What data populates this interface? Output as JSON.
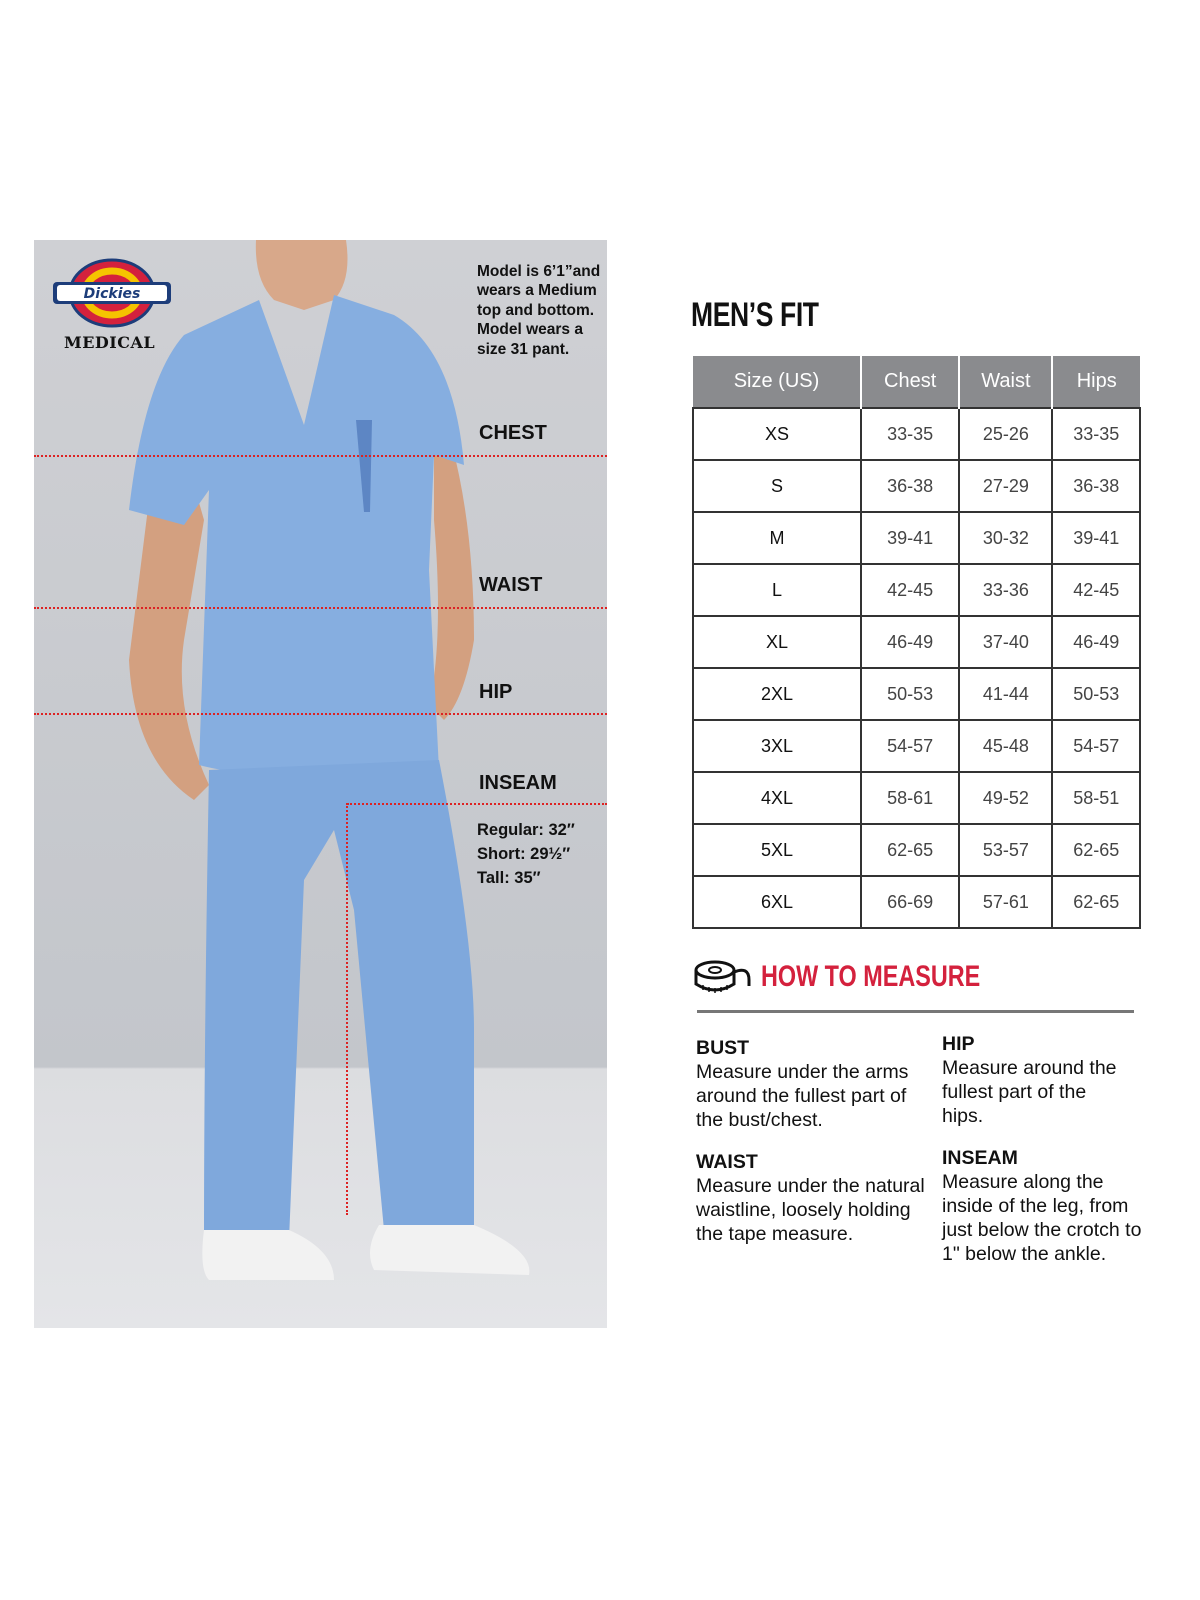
{
  "brand": {
    "logo_text": "Dickies",
    "sub_label": "MEDICAL"
  },
  "model_note": "Model is 6’1”and wears a Medium top and bottom. Model wears a size 31 pant.",
  "measure_labels": {
    "chest": "CHEST",
    "waist": "WAIST",
    "hip": "HIP",
    "inseam": "INSEAM"
  },
  "inseam_lengths": [
    "Regular: 32″",
    "Short: 29½″",
    "Tall: 35″"
  ],
  "colors": {
    "accent_red": "#d4213d",
    "header_gray": "#8a8b8e",
    "scrubs_blue": "#86aee0"
  },
  "size_chart": {
    "title": "MEN’S FIT",
    "headers": [
      "Size (US)",
      "Chest",
      "Waist",
      "Hips"
    ],
    "rows": [
      [
        "XS",
        "33-35",
        "25-26",
        "33-35"
      ],
      [
        "S",
        "36-38",
        "27-29",
        "36-38"
      ],
      [
        "M",
        "39-41",
        "30-32",
        "39-41"
      ],
      [
        "L",
        "42-45",
        "33-36",
        "42-45"
      ],
      [
        "XL",
        "46-49",
        "37-40",
        "46-49"
      ],
      [
        "2XL",
        "50-53",
        "41-44",
        "50-53"
      ],
      [
        "3XL",
        "54-57",
        "45-48",
        "54-57"
      ],
      [
        "4XL",
        "58-61",
        "49-52",
        "58-51"
      ],
      [
        "5XL",
        "62-65",
        "53-57",
        "62-65"
      ],
      [
        "6XL",
        "66-69",
        "57-61",
        "62-65"
      ]
    ]
  },
  "how_to_measure": {
    "title": "HOW TO MEASURE",
    "icon": "tape-measure-icon",
    "items": [
      {
        "heading": "BUST",
        "text": "Measure under the arms around the fullest part of the bust/chest."
      },
      {
        "heading": "WAIST",
        "text": "Measure under the natural waistline, loosely holding the tape measure."
      },
      {
        "heading": "HIP",
        "text": "Measure around the fullest part of the hips."
      },
      {
        "heading": "INSEAM",
        "text": "Measure along the inside of the leg, from just below the crotch to 1\" below the ankle."
      }
    ]
  }
}
